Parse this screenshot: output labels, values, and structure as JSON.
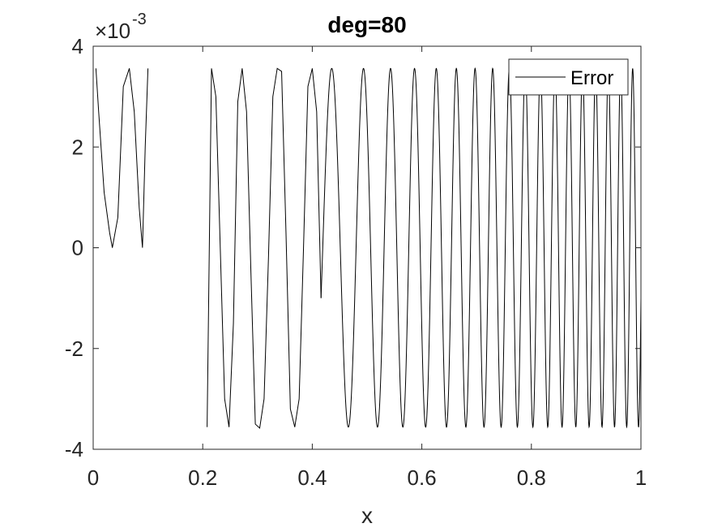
{
  "chart_data": {
    "type": "line",
    "title": "deg=80",
    "xlabel": "x",
    "ylabel": "",
    "xlim": [
      0,
      1
    ],
    "ylim": [
      -0.004,
      0.004
    ],
    "y_exponent_label": {
      "base": "×10",
      "power": "-3"
    },
    "xticks": [
      0,
      0.2,
      0.4,
      0.6,
      0.8,
      1
    ],
    "xtick_labels": [
      "0",
      "0.2",
      "0.4",
      "0.6",
      "0.8",
      "1"
    ],
    "yticks": [
      -0.004,
      -0.002,
      0,
      0.002,
      0.004
    ],
    "ytick_labels": [
      "-4",
      "-2",
      "0",
      "2",
      "4"
    ],
    "grid": false,
    "legend": {
      "position": "top-right",
      "entries": [
        "Error"
      ]
    },
    "colors": {
      "line": "#000000",
      "axes": "#262626"
    },
    "series": [
      {
        "name": "Error",
        "segments": [
          {
            "x": [
              0.005,
              0.01,
              0.02,
              0.03,
              0.035,
              0.045,
              0.055,
              0.066,
              0.075,
              0.084,
              0.09,
              0.095,
              0.1
            ],
            "y": [
              0.00356,
              0.0027,
              0.0011,
              0.0003,
              0.0,
              0.0006,
              0.0032,
              0.00356,
              0.0027,
              0.0008,
              0.0,
              0.002,
              0.00356
            ]
          },
          {
            "x": [
              0.208,
              0.216,
              0.224,
              0.232,
              0.24,
              0.248,
              0.256,
              0.264,
              0.272,
              0.28,
              0.288,
              0.296,
              0.304,
              0.312,
              0.32,
              0.328,
              0.336,
              0.344,
              0.352,
              0.36,
              0.368,
              0.376,
              0.384,
              0.392,
              0.4,
              0.408,
              0.416
            ],
            "y": [
              -0.00356,
              0.00356,
              0.003,
              0.0,
              -0.003,
              -0.00356,
              -0.0015,
              0.0029,
              0.00356,
              0.0027,
              -0.0005,
              -0.0035,
              -0.00358,
              -0.003,
              -0.0002,
              0.003,
              0.00356,
              0.0035,
              0.0003,
              -0.0032,
              -0.00356,
              -0.003,
              0.0,
              0.0032,
              0.00356,
              0.0027,
              -0.001
            ]
          }
        ]
      }
    ]
  }
}
